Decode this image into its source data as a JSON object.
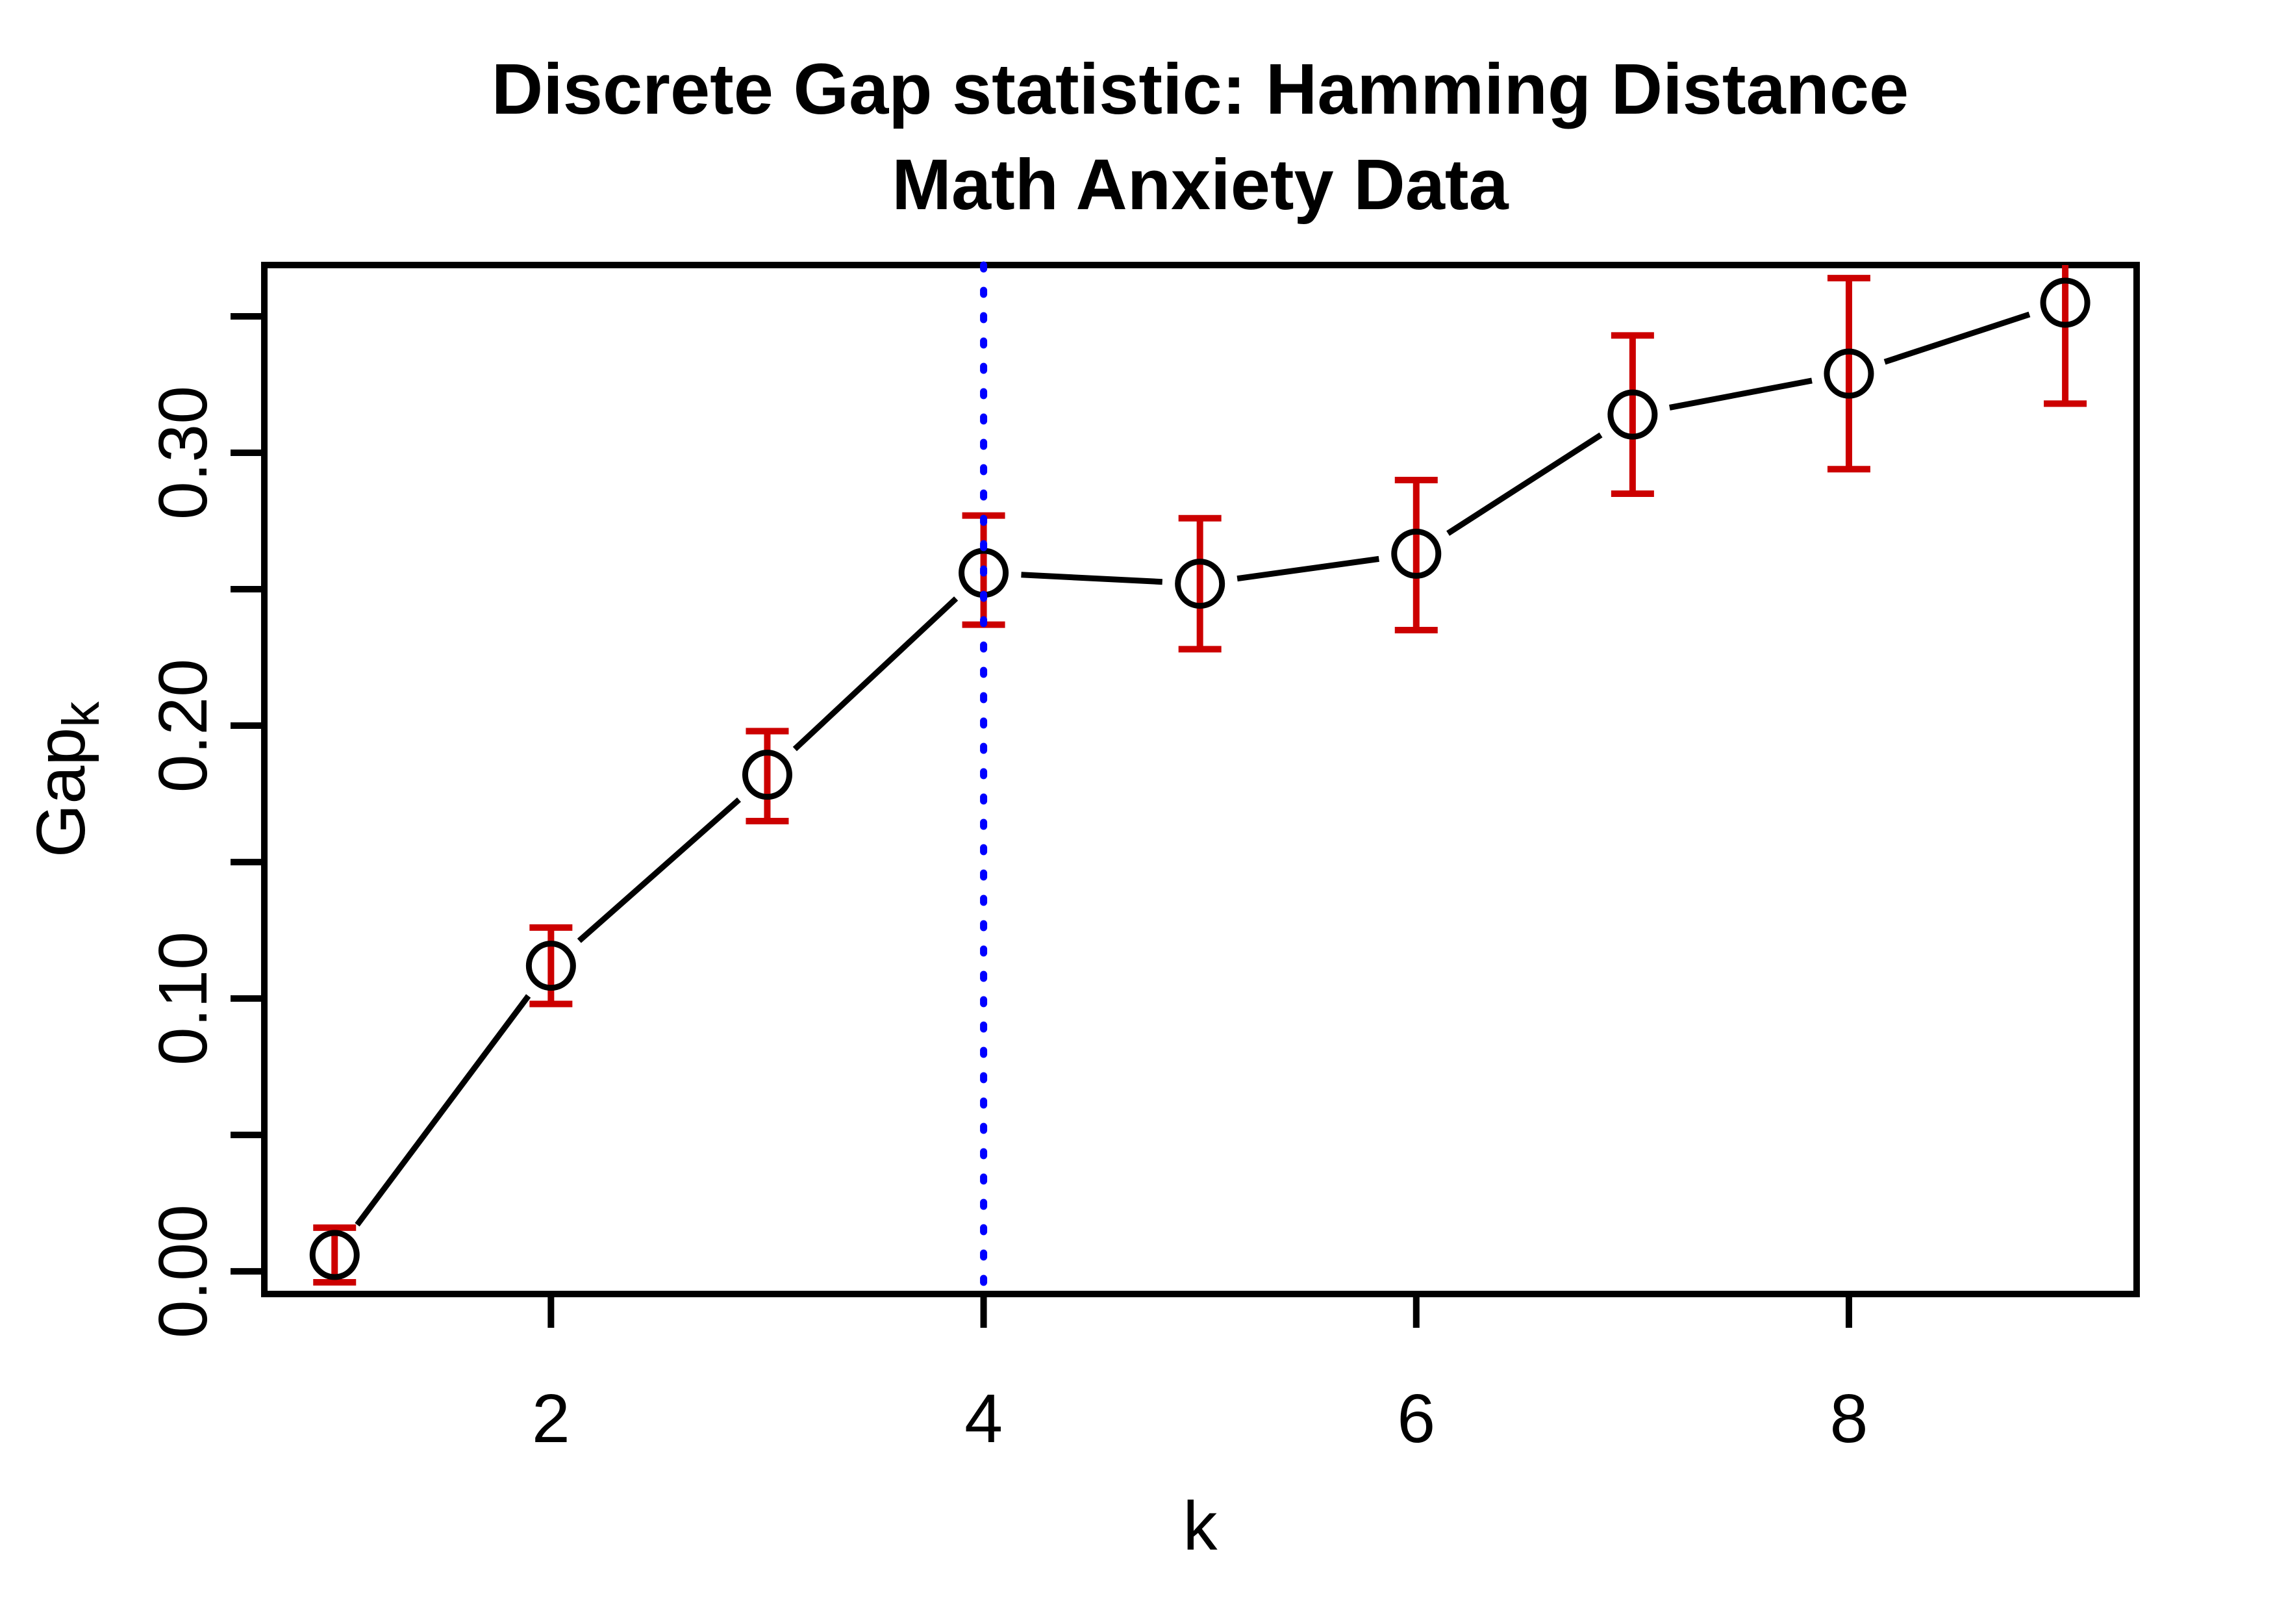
{
  "title": {
    "line1": "Discrete Gap statistic: Hamming Distance",
    "line2": "Math Anxiety Data"
  },
  "axes": {
    "xlabel": "k",
    "ylabel_main": "Gap",
    "ylabel_sub": "k",
    "x_tick_labels": [
      "2",
      "4",
      "6",
      "8"
    ],
    "y_tick_labels": [
      "0.00",
      "0.10",
      "0.20",
      "0.30"
    ]
  },
  "chart_data": {
    "type": "line",
    "title": "Discrete Gap statistic: Hamming Distance",
    "subtitle": "Math Anxiety Data",
    "xlabel": "k",
    "ylabel": "Gap_k",
    "x": [
      1,
      2,
      3,
      4,
      5,
      6,
      7,
      8,
      9
    ],
    "series": [
      {
        "name": "Gap_k",
        "values": [
          0.006,
          0.112,
          0.182,
          0.256,
          0.252,
          0.263,
          0.314,
          0.329,
          0.355
        ]
      }
    ],
    "error_lower": [
      -0.004,
      0.098,
      0.165,
      0.237,
      0.228,
      0.235,
      0.285,
      0.294,
      0.318
    ],
    "error_upper": [
      0.016,
      0.126,
      0.198,
      0.277,
      0.276,
      0.29,
      0.343,
      0.364,
      0.392
    ],
    "vline_x": 4,
    "vline_style": "dotted",
    "x_ticks": [
      2,
      4,
      6,
      8
    ],
    "y_ticks": [
      0,
      0.05,
      0.1,
      0.15,
      0.2,
      0.25,
      0.3,
      0.35
    ],
    "y_labeled_ticks": [
      0,
      0.1,
      0.2,
      0.3
    ],
    "xlim": [
      0.675,
      9.33
    ],
    "ylim": [
      -0.0083,
      0.3688
    ],
    "grid": false,
    "legend": "none",
    "marker": "open-circle",
    "colors": {
      "line": "#000000",
      "marker": "#000000",
      "error_bar": "#cc0000",
      "vline": "#0000ff",
      "text": "#000000",
      "background": "#ffffff"
    }
  }
}
